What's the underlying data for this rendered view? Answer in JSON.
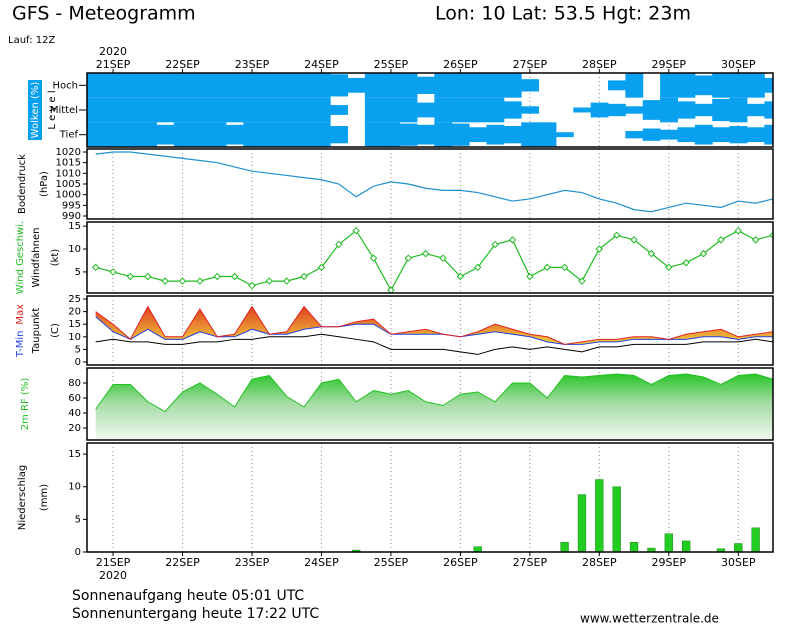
{
  "header": {
    "title": "GFS - Meteogramm",
    "location": "Lon: 10 Lat: 53.5 Hgt: 23m",
    "run": "Lauf: 12Z",
    "year": "2020"
  },
  "footer": {
    "sunrise": "Sonnenaufgang heute 05:01 UTC",
    "sunset": "Sonnenuntergang heute 17:22 UTC",
    "source": "www.wetterzentrale.de"
  },
  "chart_data": [
    {
      "type": "cloud",
      "ylabel": "Wolken (%)",
      "level_label": "L e v e l",
      "color": "#0aa0f0",
      "xlim": [
        20.625,
        30.5
      ],
      "xticks": [
        {
          "value": 21,
          "label": "21SEP"
        },
        {
          "value": 22,
          "label": "22SEP"
        },
        {
          "value": 23,
          "label": "23SEP"
        },
        {
          "value": 24,
          "label": "24SEP"
        },
        {
          "value": 25,
          "label": "25SEP"
        },
        {
          "value": 26,
          "label": "26SEP"
        },
        {
          "value": 27,
          "label": "27SEP"
        },
        {
          "value": 28,
          "label": "28SEP"
        },
        {
          "value": 29,
          "label": "29SEP"
        },
        {
          "value": 30,
          "label": "30SEP"
        }
      ],
      "x": [
        20.75,
        21,
        21.25,
        21.5,
        21.75,
        22,
        22.25,
        22.5,
        22.75,
        23,
        23.25,
        23.5,
        23.75,
        24,
        24.25,
        24.5,
        24.75,
        25,
        25.25,
        25.5,
        25.75,
        26,
        26.25,
        26.5,
        26.75,
        27,
        27.25,
        27.5,
        27.75,
        28,
        28.25,
        28.5,
        28.75,
        29,
        29.25,
        29.5,
        29.75,
        30,
        30.25,
        30.5
      ],
      "series": [
        {
          "name": "Hoch",
          "values": [
            100,
            100,
            100,
            100,
            100,
            100,
            100,
            100,
            100,
            100,
            100,
            100,
            100,
            100,
            90,
            60,
            100,
            100,
            100,
            70,
            100,
            100,
            100,
            100,
            100,
            50,
            0,
            0,
            0,
            0,
            40,
            100,
            0,
            100,
            100,
            80,
            100,
            100,
            100,
            60
          ]
        },
        {
          "name": "Mittel",
          "values": [
            100,
            100,
            100,
            100,
            100,
            100,
            100,
            100,
            100,
            100,
            100,
            100,
            100,
            100,
            40,
            0,
            100,
            100,
            100,
            60,
            100,
            100,
            100,
            100,
            70,
            30,
            0,
            0,
            20,
            60,
            50,
            30,
            80,
            100,
            70,
            50,
            90,
            100,
            50,
            70
          ]
        },
        {
          "name": "Tief",
          "values": [
            100,
            100,
            100,
            100,
            80,
            100,
            100,
            100,
            80,
            100,
            100,
            100,
            100,
            100,
            70,
            0,
            100,
            100,
            90,
            80,
            100,
            90,
            60,
            80,
            70,
            100,
            100,
            20,
            0,
            0,
            0,
            30,
            50,
            40,
            60,
            80,
            60,
            70,
            60,
            80
          ]
        }
      ]
    },
    {
      "type": "line",
      "ylabel": "Bodendruck",
      "unit": "(hPa)",
      "xlim": [
        20.625,
        30.5
      ],
      "xticks": [
        {
          "value": 21,
          "label": "21SEP"
        },
        {
          "value": 22,
          "label": "22SEP"
        },
        {
          "value": 23,
          "label": "23SEP"
        },
        {
          "value": 24,
          "label": "24SEP"
        },
        {
          "value": 25,
          "label": "25SEP"
        },
        {
          "value": 26,
          "label": "26SEP"
        },
        {
          "value": 27,
          "label": "27SEP"
        },
        {
          "value": 28,
          "label": "28SEP"
        },
        {
          "value": 29,
          "label": "29SEP"
        },
        {
          "value": 30,
          "label": "30SEP"
        }
      ],
      "ylim": [
        988.6,
        1021.4
      ],
      "yticks": [
        990,
        995,
        1000,
        1005,
        1010,
        1015,
        1020
      ],
      "x": [
        20.75,
        21,
        21.25,
        21.5,
        21.75,
        22,
        22.25,
        22.5,
        22.75,
        23,
        23.25,
        23.5,
        23.75,
        24,
        24.25,
        24.5,
        24.75,
        25,
        25.25,
        25.5,
        25.75,
        26,
        26.25,
        26.5,
        26.75,
        27,
        27.25,
        27.5,
        27.75,
        28,
        28.25,
        28.5,
        28.75,
        29,
        29.25,
        29.5,
        29.75,
        30,
        30.25,
        30.5
      ],
      "series": [
        {
          "color": "#1e90d0",
          "values": [
            1019,
            1020,
            1020,
            1019,
            1018,
            1017,
            1016,
            1015,
            1013,
            1011,
            1010,
            1009,
            1008,
            1007,
            1005,
            999,
            1004,
            1006,
            1005,
            1003,
            1002,
            1002,
            1001,
            999,
            997,
            998,
            1000,
            1002,
            1001,
            998,
            996,
            993,
            992,
            994,
            996,
            995,
            994,
            997,
            996,
            998
          ]
        }
      ]
    },
    {
      "type": "line",
      "unit": "(kt)",
      "extra_label": "Windfahnen",
      "markers": "diamond",
      "xlim": [
        20.625,
        30.5
      ],
      "xticks": [
        {
          "value": 21,
          "label": "21SEP"
        },
        {
          "value": 22,
          "label": "22SEP"
        },
        {
          "value": 23,
          "label": "23SEP"
        },
        {
          "value": 24,
          "label": "24SEP"
        },
        {
          "value": 25,
          "label": "25SEP"
        },
        {
          "value": 26,
          "label": "26SEP"
        },
        {
          "value": 27,
          "label": "27SEP"
        },
        {
          "value": 28,
          "label": "28SEP"
        },
        {
          "value": 29,
          "label": "29SEP"
        },
        {
          "value": 30,
          "label": "30SEP"
        }
      ],
      "ylim": [
        0.4,
        15.9
      ],
      "yticks": [
        5,
        10,
        15
      ],
      "x": [
        20.75,
        21,
        21.25,
        21.5,
        21.75,
        22,
        22.25,
        22.5,
        22.75,
        23,
        23.25,
        23.5,
        23.75,
        24,
        24.25,
        24.5,
        24.75,
        25,
        25.25,
        25.5,
        25.75,
        26,
        26.25,
        26.5,
        26.75,
        27,
        27.25,
        27.5,
        27.75,
        28,
        28.25,
        28.5,
        28.75,
        29,
        29.25,
        29.5,
        29.75,
        30,
        30.25,
        30.5
      ],
      "series": [
        {
          "name": "Wind Geschwi.",
          "color": "#22bb22",
          "values": [
            6,
            5,
            4,
            4,
            3,
            3,
            3,
            4,
            4,
            2,
            3,
            3,
            4,
            6,
            11,
            14,
            8,
            1,
            8,
            9,
            8,
            4,
            6,
            11,
            12,
            4,
            6,
            6,
            3,
            10,
            13,
            12,
            9,
            6,
            7,
            9,
            12,
            14,
            12,
            13
          ]
        }
      ]
    },
    {
      "type": "temperature",
      "unit": "(C)",
      "xlim": [
        20.625,
        30.5
      ],
      "xticks": [
        {
          "value": 21,
          "label": "21SEP"
        },
        {
          "value": 22,
          "label": "22SEP"
        },
        {
          "value": 23,
          "label": "23SEP"
        },
        {
          "value": 24,
          "label": "24SEP"
        },
        {
          "value": 25,
          "label": "25SEP"
        },
        {
          "value": 26,
          "label": "26SEP"
        },
        {
          "value": 27,
          "label": "27SEP"
        },
        {
          "value": 28,
          "label": "28SEP"
        },
        {
          "value": 29,
          "label": "29SEP"
        },
        {
          "value": 30,
          "label": "30SEP"
        }
      ],
      "ylim": [
        -1.2,
        26.2
      ],
      "yticks": [
        0,
        5,
        10,
        15,
        20,
        25
      ],
      "x": [
        20.75,
        21,
        21.25,
        21.5,
        21.75,
        22,
        22.25,
        22.5,
        22.75,
        23,
        23.25,
        23.5,
        23.75,
        24,
        24.25,
        24.5,
        24.75,
        25,
        25.25,
        25.5,
        25.75,
        26,
        26.25,
        26.5,
        26.75,
        27,
        27.25,
        27.5,
        27.75,
        28,
        28.25,
        28.5,
        28.75,
        29,
        29.25,
        29.5,
        29.75,
        30,
        30.25,
        30.5
      ],
      "series": [
        {
          "name": "T-Min",
          "color": "#2040e0",
          "values": [
            18,
            12,
            9,
            13,
            9,
            9,
            12,
            10,
            10,
            13,
            11,
            11,
            13,
            14,
            14,
            15,
            15,
            11,
            11,
            11,
            11,
            10,
            11,
            12,
            11,
            10,
            8,
            7,
            7,
            8,
            8,
            9,
            9,
            9,
            9,
            10,
            10,
            9,
            10,
            10
          ]
        },
        {
          "name": "Max",
          "color": "#e02020",
          "values": [
            20,
            15,
            9,
            22,
            10,
            10,
            21,
            10,
            11,
            22,
            11,
            12,
            22,
            14,
            14,
            16,
            17,
            11,
            12,
            13,
            11,
            10,
            12,
            15,
            13,
            11,
            10,
            7,
            8,
            9,
            9,
            10,
            10,
            9,
            11,
            12,
            13,
            10,
            11,
            12
          ]
        },
        {
          "name": "Taupunkt",
          "color": "#000000",
          "values": [
            8,
            9,
            8,
            8,
            7,
            7,
            8,
            8,
            9,
            9,
            10,
            10,
            10,
            11,
            10,
            9,
            8,
            5,
            5,
            5,
            5,
            4,
            3,
            5,
            6,
            5,
            6,
            5,
            4,
            6,
            6,
            7,
            7,
            7,
            7,
            8,
            8,
            8,
            9,
            8
          ]
        }
      ]
    },
    {
      "type": "area",
      "xlim": [
        20.625,
        30.5
      ],
      "xticks": [
        {
          "value": 21,
          "label": "21SEP"
        },
        {
          "value": 22,
          "label": "22SEP"
        },
        {
          "value": 23,
          "label": "23SEP"
        },
        {
          "value": 24,
          "label": "24SEP"
        },
        {
          "value": 25,
          "label": "25SEP"
        },
        {
          "value": 26,
          "label": "26SEP"
        },
        {
          "value": 27,
          "label": "27SEP"
        },
        {
          "value": 28,
          "label": "28SEP"
        },
        {
          "value": 29,
          "label": "29SEP"
        },
        {
          "value": 30,
          "label": "30SEP"
        }
      ],
      "ylim": [
        4,
        100
      ],
      "yticks": [
        20,
        40,
        60,
        80
      ],
      "x": [
        20.75,
        21,
        21.25,
        21.5,
        21.75,
        22,
        22.25,
        22.5,
        22.75,
        23,
        23.25,
        23.5,
        23.75,
        24,
        24.25,
        24.5,
        24.75,
        25,
        25.25,
        25.5,
        25.75,
        26,
        26.25,
        26.5,
        26.75,
        27,
        27.25,
        27.5,
        27.75,
        28,
        28.25,
        28.5,
        28.75,
        29,
        29.25,
        29.5,
        29.75,
        30,
        30.25,
        30.5
      ],
      "series": [
        {
          "name": "2m RF (%)",
          "color": "#22c022",
          "values": [
            45,
            78,
            78,
            55,
            42,
            68,
            80,
            65,
            48,
            85,
            90,
            62,
            48,
            80,
            85,
            55,
            70,
            65,
            70,
            55,
            50,
            65,
            68,
            55,
            80,
            80,
            60,
            90,
            88,
            90,
            92,
            90,
            78,
            90,
            92,
            88,
            78,
            90,
            92,
            85
          ]
        }
      ]
    },
    {
      "type": "bar",
      "ylabel": "Niederschlag",
      "unit": "(mm)",
      "xlim": [
        20.625,
        30.5
      ],
      "xticks": [
        {
          "value": 21,
          "label": "21SEP"
        },
        {
          "value": 22,
          "label": "22SEP"
        },
        {
          "value": 23,
          "label": "23SEP"
        },
        {
          "value": 24,
          "label": "24SEP"
        },
        {
          "value": 25,
          "label": "25SEP"
        },
        {
          "value": 26,
          "label": "26SEP"
        },
        {
          "value": 27,
          "label": "27SEP"
        },
        {
          "value": 28,
          "label": "28SEP"
        },
        {
          "value": 29,
          "label": "29SEP"
        },
        {
          "value": 30,
          "label": "30SEP"
        }
      ],
      "ylim": [
        0,
        16.7
      ],
      "yticks": [
        0,
        5,
        10,
        15
      ],
      "x": [
        20.75,
        21,
        21.25,
        21.5,
        21.75,
        22,
        22.25,
        22.5,
        22.75,
        23,
        23.25,
        23.5,
        23.75,
        24,
        24.25,
        24.5,
        24.75,
        25,
        25.25,
        25.5,
        25.75,
        26,
        26.25,
        26.5,
        26.75,
        27,
        27.25,
        27.5,
        27.75,
        28,
        28.25,
        28.5,
        28.75,
        29,
        29.25,
        29.5,
        29.75,
        30,
        30.25,
        30.5
      ],
      "series": [
        {
          "color": "#22cc22",
          "values": [
            0,
            0,
            0,
            0,
            0,
            0,
            0,
            0,
            0,
            0,
            0,
            0,
            0,
            0,
            0,
            0.3,
            0,
            0,
            0,
            0,
            0,
            0,
            0.8,
            0,
            0,
            0,
            0,
            1.5,
            8.8,
            11.1,
            10,
            1.5,
            0.6,
            2.8,
            1.7,
            0,
            0.5,
            1.3,
            3.7,
            0
          ]
        }
      ]
    }
  ]
}
